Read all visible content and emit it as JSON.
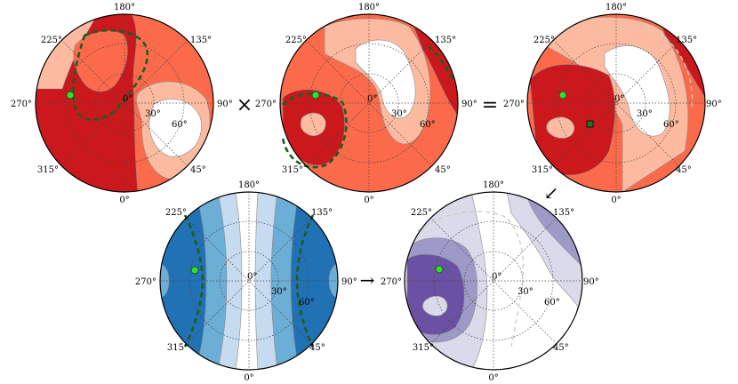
{
  "operators": {
    "times": "×",
    "equals": "=",
    "arrow_down_left": "↙",
    "arrow_right": "→"
  },
  "plots": [
    {
      "id": "plot-top-left",
      "azimuth_labels": [
        "180°",
        "135°",
        "90°",
        "45°",
        "0°",
        "315°",
        "270°",
        "225°"
      ],
      "zenith_labels": [
        "0°",
        "30°",
        "60°"
      ],
      "colors": {
        "c1": "#cb181d",
        "c2": "#fb6a4a",
        "c3": "#fcbba1",
        "c4": "#ffffff"
      }
    },
    {
      "id": "plot-top-middle",
      "azimuth_labels": [
        "180°",
        "135°",
        "90°",
        "45°",
        "0°",
        "315°",
        "270°",
        "225°"
      ],
      "zenith_labels": [
        "0°",
        "30°",
        "60°"
      ],
      "colors": {
        "c1": "#cb181d",
        "c2": "#fb6a4a",
        "c3": "#fcbba1",
        "c4": "#ffffff"
      }
    },
    {
      "id": "plot-top-right",
      "azimuth_labels": [
        "180°",
        "135°",
        "90°",
        "45°",
        "0°",
        "315°",
        "270°",
        "225°"
      ],
      "zenith_labels": [
        "0°",
        "30°",
        "60°"
      ],
      "colors": {
        "c1": "#cb181d",
        "c2": "#fb6a4a",
        "c3": "#fcbba1",
        "c4": "#ffffff"
      }
    },
    {
      "id": "plot-bottom-left",
      "azimuth_labels": [
        "180°",
        "135°",
        "90°",
        "45°",
        "0°",
        "315°",
        "270°",
        "225°"
      ],
      "zenith_labels": [
        "0°",
        "30°",
        "60°"
      ],
      "colors": {
        "c1": "#2171b5",
        "c2": "#6baed6",
        "c3": "#c6dbef",
        "c4": "#ffffff"
      }
    },
    {
      "id": "plot-bottom-right",
      "azimuth_labels": [
        "180°",
        "135°",
        "90°",
        "45°",
        "0°",
        "315°",
        "270°",
        "225°"
      ],
      "zenith_labels": [
        "0°",
        "30°",
        "60°"
      ],
      "colors": {
        "c1": "#6a51a3",
        "c2": "#9e9ac8",
        "c3": "#dadaeb",
        "c4": "#ffffff"
      }
    }
  ],
  "marker_colors": {
    "sun": "#33dd33",
    "square": "#1a7a1a",
    "contour": "#1b5e20"
  }
}
